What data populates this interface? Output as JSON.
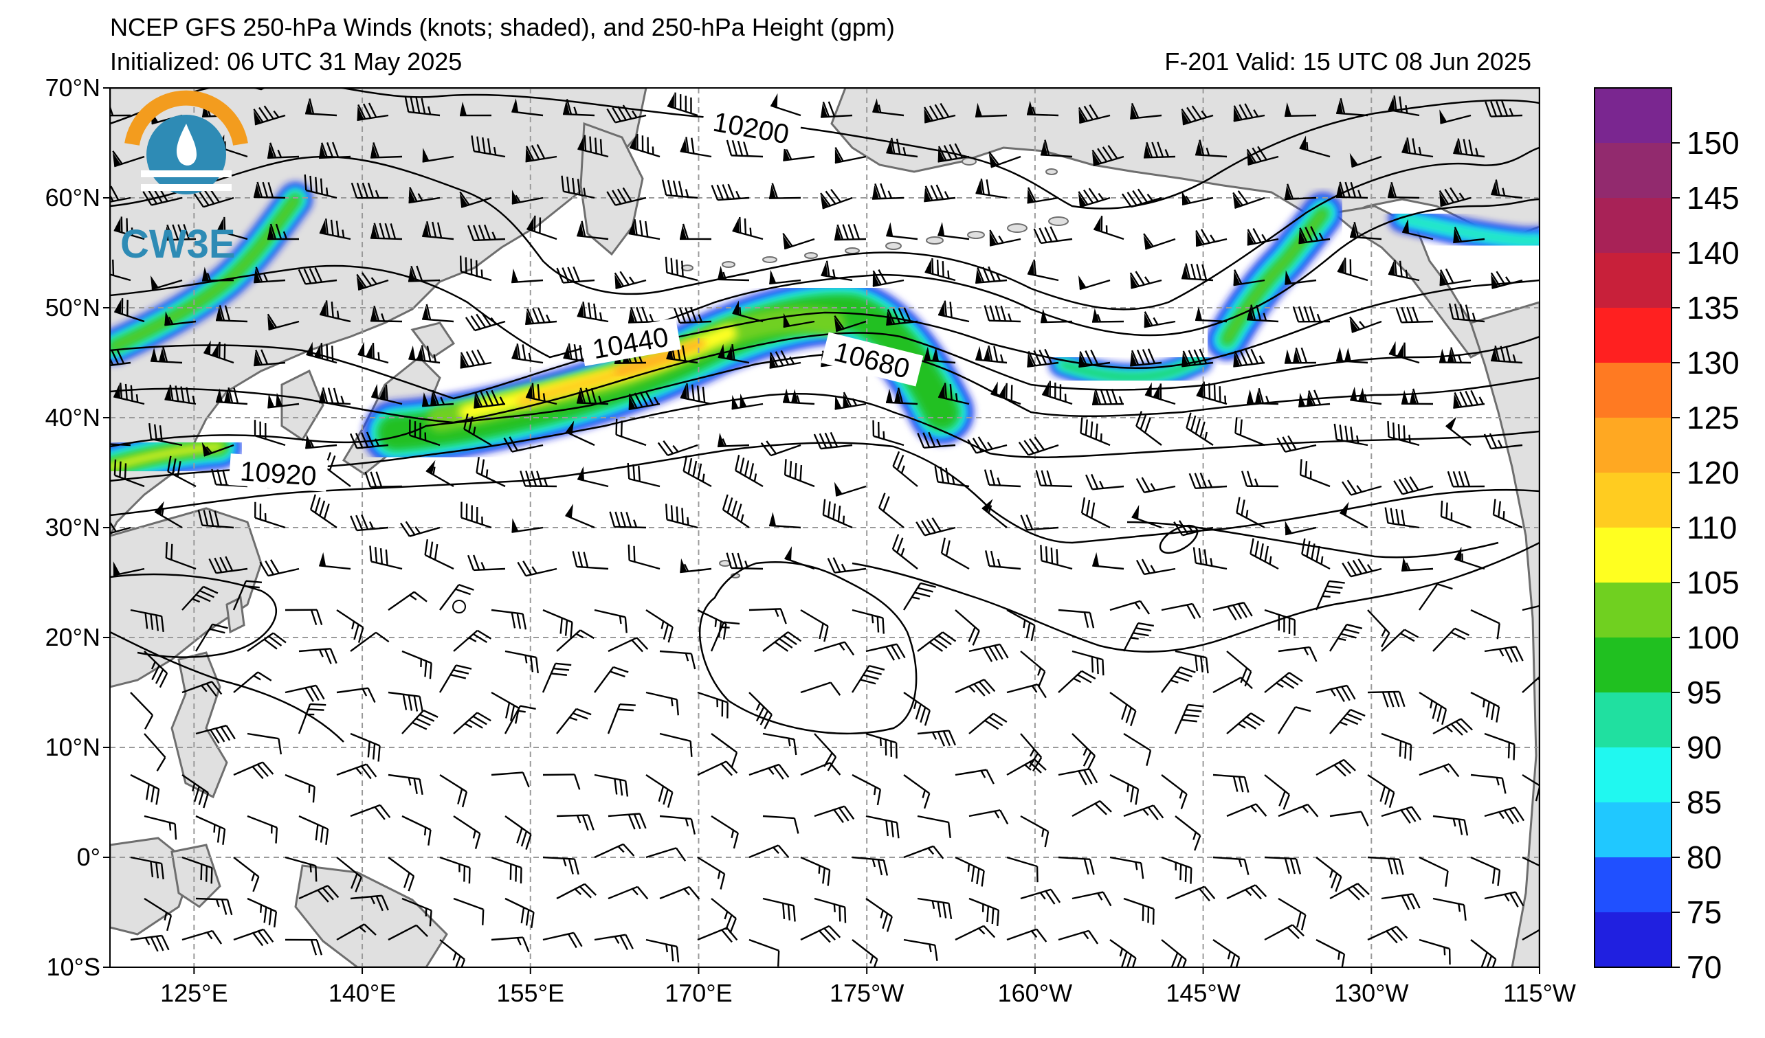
{
  "header": {
    "title": "NCEP GFS 250-hPa Winds (knots; shaded), and 250-hPa Height (gpm)",
    "initialized": "Initialized: 06 UTC 31 May 2025",
    "valid": "F-201  Valid: 15 UTC 08 Jun 2025"
  },
  "logo": {
    "text": "CW3E"
  },
  "map": {
    "lat_labels": [
      "70°N",
      "60°N",
      "50°N",
      "40°N",
      "30°N",
      "20°N",
      "10°N",
      "0°",
      "10°S"
    ],
    "lon_labels": [
      "125°E",
      "140°E",
      "155°E",
      "170°E",
      "175°W",
      "160°W",
      "145°W",
      "130°W",
      "115°W"
    ],
    "contour_labels": [
      "10200",
      "10440",
      "10680",
      "10920"
    ],
    "colors": {
      "land": "#e0e0e0",
      "coast": "#6e6e6e",
      "grid": "#9a9a9a"
    }
  },
  "colorbar": {
    "labels": [
      "150",
      "145",
      "140",
      "135",
      "130",
      "125",
      "120",
      "110",
      "105",
      "100",
      "95",
      "90",
      "85",
      "80",
      "75",
      "70"
    ],
    "colors": [
      "#7a2690",
      "#922a6e",
      "#a82257",
      "#c8203a",
      "#ff2020",
      "#ff7a22",
      "#ffa822",
      "#ffcc20",
      "#ffff20",
      "#70d020",
      "#20c020",
      "#20e0a0",
      "#20f8f0",
      "#20c8ff",
      "#2050ff",
      "#2020e0"
    ]
  }
}
